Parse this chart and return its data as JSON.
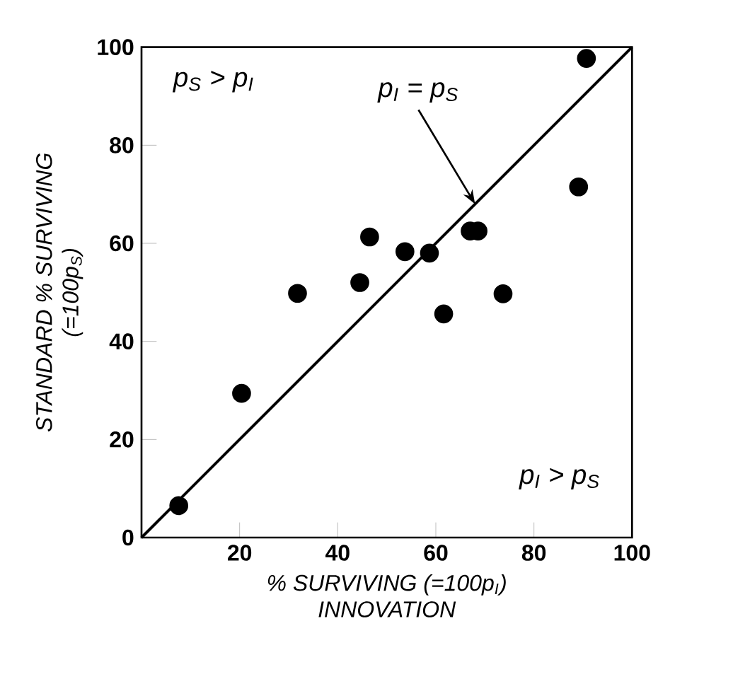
{
  "chart_data": {
    "type": "scatter",
    "xlabel": "% SURVIVING (=100p$_{I}$) INNOVATION",
    "ylabel": "STANDARD % SURVIVING (=100p$_{S}$)",
    "x": [
      7.6,
      20.4,
      31.8,
      44.5,
      46.5,
      53.7,
      58.7,
      61.6,
      67.0,
      68.6,
      73.7,
      89.1,
      90.7
    ],
    "series": [
      {
        "marker": "circle",
        "color": "#000000",
        "values": [
          6.5,
          29.4,
          49.8,
          52.0,
          61.3,
          58.3,
          58.0,
          45.6,
          62.5,
          62.5,
          49.7,
          71.5,
          97.7
        ]
      },
      {
        "type": "line",
        "marker": "none",
        "color": "#000000",
        "x": [
          0,
          100
        ],
        "values": [
          0,
          100
        ]
      }
    ],
    "xlim": [
      0,
      100
    ],
    "ylim": [
      0,
      100
    ],
    "xticks": [
      {
        "value": 0,
        "label": null
      },
      20,
      40,
      60,
      80,
      100
    ],
    "yticks": [
      0,
      20,
      40,
      60,
      80,
      100
    ],
    "annotations": [
      "p$_{S}$ > p$_{I}$",
      {
        "text": "p$_{I}$ = p$_{S}$",
        "x": 68,
        "y": 68
      },
      "p$_{I}$ > p$_{S}$"
    ]
  }
}
